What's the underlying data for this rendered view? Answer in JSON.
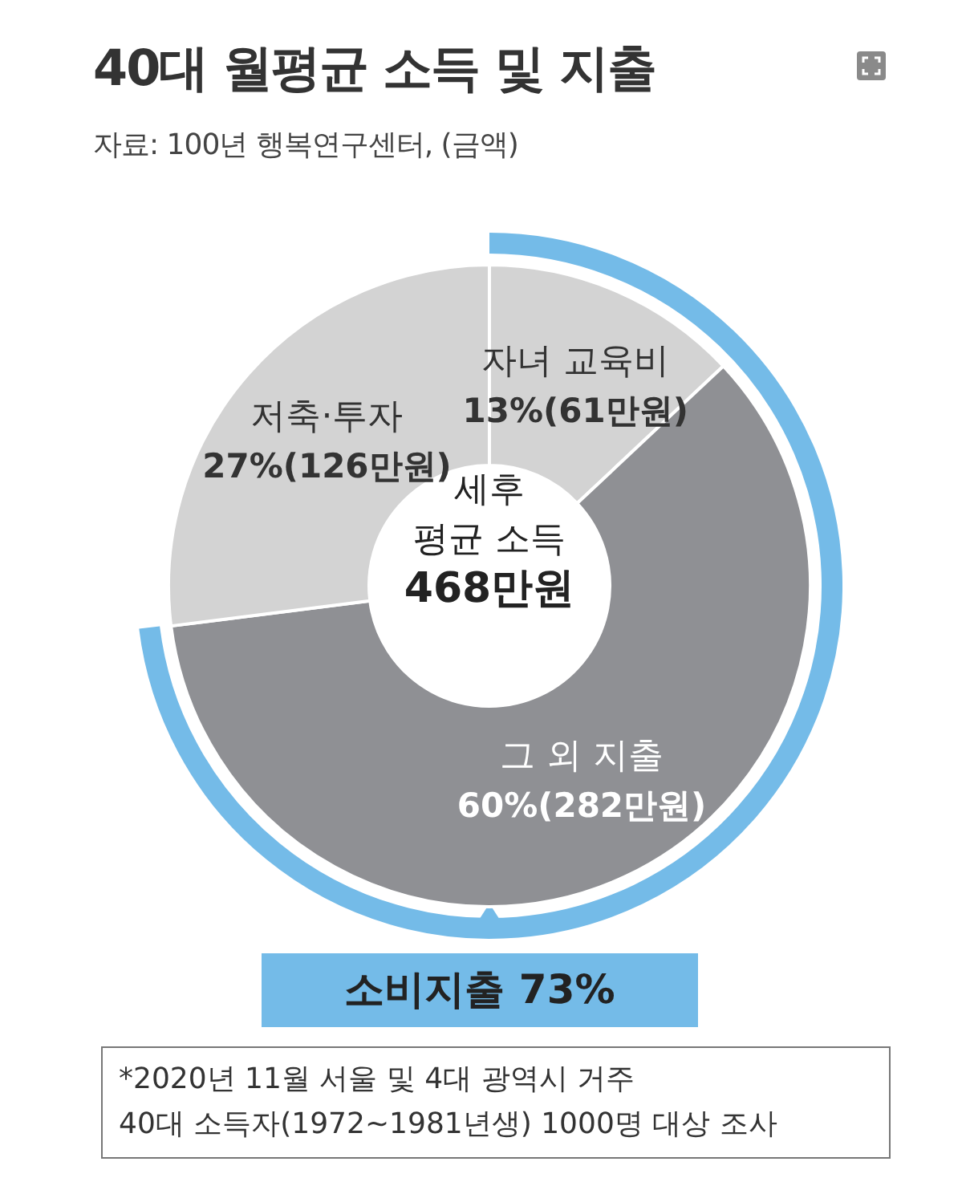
{
  "chart_data": {
    "type": "donut",
    "title": "40대 월평균 소득 및 지출",
    "subtitle": "자료: 100년 행복연구센터, (금액)",
    "categories": [
      "자녀 교육비",
      "그 외 지출",
      "저축·투자"
    ],
    "values": [
      13,
      60,
      27
    ],
    "colors": [
      "#d3d3d3",
      "#8f9094",
      "#d3d3d3"
    ],
    "value_labels": [
      "13%(61만원)",
      "60%(282만원)",
      "27%(126만원)"
    ],
    "annotations": [
      "세후\n평균 소득\n468만원",
      "*2020년 11월 서울 및 4대 광역시 거주\n40대 소득자(1972~1981년생) 1000명 대상 조사",
      "소비지출 73%"
    ]
  }
}
